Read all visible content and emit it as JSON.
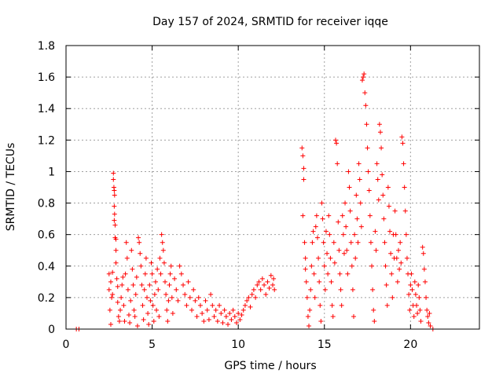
{
  "chart_data": {
    "type": "scatter",
    "title": "Day 157 of 2024, SRMTID for receiver iqqe",
    "xlabel": "GPS time / hours",
    "ylabel": "SRMTID / TECUs",
    "xlim": [
      0,
      24
    ],
    "ylim": [
      0,
      1.8
    ],
    "xticks": [
      0,
      5,
      10,
      15,
      20
    ],
    "yticks": [
      0,
      0.2,
      0.4,
      0.6,
      0.8,
      1,
      1.2,
      1.4,
      1.6,
      1.8
    ],
    "xtick_labels": [
      "0",
      "5",
      "10",
      "15",
      "20"
    ],
    "ytick_labels": [
      "0",
      "0.2",
      "0.4",
      "0.6",
      "0.8",
      "1",
      "1.2",
      "1.4",
      "1.6",
      "1.8"
    ],
    "grid": true,
    "marker": "+",
    "color": "#ff0000",
    "series": [
      {
        "name": "SRMTID",
        "points": [
          [
            0.6,
            0.0
          ],
          [
            0.75,
            0.0
          ],
          [
            2.5,
            0.35
          ],
          [
            2.5,
            0.25
          ],
          [
            2.55,
            0.12
          ],
          [
            2.6,
            0.03
          ],
          [
            2.6,
            0.3
          ],
          [
            2.65,
            0.2
          ],
          [
            2.7,
            0.22
          ],
          [
            2.7,
            0.36
          ],
          [
            2.75,
            0.99
          ],
          [
            2.75,
            0.95
          ],
          [
            2.78,
            0.9
          ],
          [
            2.8,
            0.88
          ],
          [
            2.82,
            0.85
          ],
          [
            2.8,
            0.78
          ],
          [
            2.82,
            0.73
          ],
          [
            2.8,
            0.69
          ],
          [
            2.85,
            0.66
          ],
          [
            2.85,
            0.58
          ],
          [
            2.9,
            0.57
          ],
          [
            2.9,
            0.5
          ],
          [
            2.9,
            0.42
          ],
          [
            2.95,
            0.32
          ],
          [
            3.0,
            0.27
          ],
          [
            3.0,
            0.17
          ],
          [
            3.05,
            0.08
          ],
          [
            3.1,
            0.05
          ],
          [
            3.15,
            0.12
          ],
          [
            3.2,
            0.2
          ],
          [
            3.25,
            0.28
          ],
          [
            3.3,
            0.33
          ],
          [
            3.35,
            0.15
          ],
          [
            3.4,
            0.05
          ],
          [
            3.45,
            0.35
          ],
          [
            3.5,
            0.55
          ],
          [
            3.55,
            0.45
          ],
          [
            3.6,
            0.25
          ],
          [
            3.65,
            0.09
          ],
          [
            3.7,
            0.04
          ],
          [
            3.75,
            0.18
          ],
          [
            3.8,
            0.5
          ],
          [
            3.85,
            0.38
          ],
          [
            3.9,
            0.28
          ],
          [
            3.95,
            0.12
          ],
          [
            4.0,
            0.08
          ],
          [
            4.05,
            0.22
          ],
          [
            4.1,
            0.33
          ],
          [
            4.15,
            0.02
          ],
          [
            4.2,
            0.58
          ],
          [
            4.25,
            0.55
          ],
          [
            4.3,
            0.48
          ],
          [
            4.35,
            0.4
          ],
          [
            4.4,
            0.28
          ],
          [
            4.45,
            0.15
          ],
          [
            4.5,
            0.06
          ],
          [
            4.55,
            0.25
          ],
          [
            4.6,
            0.35
          ],
          [
            4.65,
            0.45
          ],
          [
            4.7,
            0.2
          ],
          [
            4.75,
            0.1
          ],
          [
            4.8,
            0.03
          ],
          [
            4.85,
            0.28
          ],
          [
            4.9,
            0.18
          ],
          [
            4.95,
            0.42
          ],
          [
            5.0,
            0.35
          ],
          [
            5.05,
            0.15
          ],
          [
            5.1,
            0.05
          ],
          [
            5.15,
            0.22
          ],
          [
            5.2,
            0.3
          ],
          [
            5.25,
            0.12
          ],
          [
            5.3,
            0.38
          ],
          [
            5.35,
            0.25
          ],
          [
            5.4,
            0.08
          ],
          [
            5.45,
            0.45
          ],
          [
            5.5,
            0.35
          ],
          [
            5.55,
            0.6
          ],
          [
            5.6,
            0.55
          ],
          [
            5.65,
            0.5
          ],
          [
            5.7,
            0.42
          ],
          [
            5.75,
            0.3
          ],
          [
            5.8,
            0.22
          ],
          [
            5.85,
            0.12
          ],
          [
            5.9,
            0.05
          ],
          [
            5.95,
            0.18
          ],
          [
            6.0,
            0.28
          ],
          [
            6.05,
            0.35
          ],
          [
            6.1,
            0.4
          ],
          [
            6.15,
            0.2
          ],
          [
            6.2,
            0.1
          ],
          [
            6.3,
            0.32
          ],
          [
            6.4,
            0.25
          ],
          [
            6.5,
            0.18
          ],
          [
            6.6,
            0.4
          ],
          [
            6.7,
            0.35
          ],
          [
            6.8,
            0.28
          ],
          [
            6.9,
            0.22
          ],
          [
            7.0,
            0.15
          ],
          [
            7.1,
            0.3
          ],
          [
            7.2,
            0.2
          ],
          [
            7.3,
            0.12
          ],
          [
            7.4,
            0.25
          ],
          [
            7.5,
            0.18
          ],
          [
            7.6,
            0.08
          ],
          [
            7.7,
            0.2
          ],
          [
            7.8,
            0.15
          ],
          [
            7.9,
            0.1
          ],
          [
            8.0,
            0.05
          ],
          [
            8.1,
            0.18
          ],
          [
            8.2,
            0.12
          ],
          [
            8.3,
            0.06
          ],
          [
            8.4,
            0.22
          ],
          [
            8.5,
            0.15
          ],
          [
            8.6,
            0.08
          ],
          [
            8.7,
            0.12
          ],
          [
            8.8,
            0.05
          ],
          [
            8.9,
            0.15
          ],
          [
            9.0,
            0.1
          ],
          [
            9.1,
            0.04
          ],
          [
            9.2,
            0.12
          ],
          [
            9.3,
            0.08
          ],
          [
            9.4,
            0.03
          ],
          [
            9.5,
            0.1
          ],
          [
            9.6,
            0.06
          ],
          [
            9.7,
            0.12
          ],
          [
            9.8,
            0.08
          ],
          [
            9.9,
            0.04
          ],
          [
            10.0,
            0.1
          ],
          [
            10.1,
            0.06
          ],
          [
            10.2,
            0.09
          ],
          [
            10.3,
            0.12
          ],
          [
            10.4,
            0.15
          ],
          [
            10.5,
            0.18
          ],
          [
            10.6,
            0.2
          ],
          [
            10.7,
            0.14
          ],
          [
            10.8,
            0.22
          ],
          [
            10.9,
            0.25
          ],
          [
            11.0,
            0.2
          ],
          [
            11.1,
            0.28
          ],
          [
            11.2,
            0.3
          ],
          [
            11.3,
            0.25
          ],
          [
            11.4,
            0.32
          ],
          [
            11.5,
            0.28
          ],
          [
            11.6,
            0.22
          ],
          [
            11.7,
            0.3
          ],
          [
            11.8,
            0.26
          ],
          [
            11.9,
            0.34
          ],
          [
            12.0,
            0.28
          ],
          [
            12.05,
            0.32
          ],
          [
            12.1,
            0.25
          ],
          [
            13.7,
            1.15
          ],
          [
            13.75,
            1.1
          ],
          [
            13.8,
            1.02
          ],
          [
            13.8,
            0.95
          ],
          [
            13.75,
            0.72
          ],
          [
            13.85,
            0.55
          ],
          [
            13.9,
            0.45
          ],
          [
            13.9,
            0.38
          ],
          [
            13.95,
            0.3
          ],
          [
            14.0,
            0.2
          ],
          [
            14.05,
            0.08
          ],
          [
            14.1,
            0.02
          ],
          [
            14.15,
            0.12
          ],
          [
            14.2,
            0.25
          ],
          [
            14.25,
            0.4
          ],
          [
            14.3,
            0.55
          ],
          [
            14.35,
            0.62
          ],
          [
            14.4,
            0.35
          ],
          [
            14.45,
            0.2
          ],
          [
            14.5,
            0.65
          ],
          [
            14.55,
            0.72
          ],
          [
            14.6,
            0.58
          ],
          [
            14.65,
            0.45
          ],
          [
            14.7,
            0.3
          ],
          [
            14.75,
            0.15
          ],
          [
            14.8,
            0.05
          ],
          [
            14.85,
            0.8
          ],
          [
            14.9,
            0.7
          ],
          [
            14.95,
            0.55
          ],
          [
            15.0,
            0.4
          ],
          [
            15.05,
            0.25
          ],
          [
            15.1,
            0.62
          ],
          [
            15.15,
            0.48
          ],
          [
            15.2,
            0.35
          ],
          [
            15.25,
            0.72
          ],
          [
            15.3,
            0.6
          ],
          [
            15.35,
            0.45
          ],
          [
            15.4,
            0.3
          ],
          [
            15.45,
            0.15
          ],
          [
            15.5,
            0.08
          ],
          [
            15.55,
            0.55
          ],
          [
            15.6,
            0.42
          ],
          [
            15.65,
            1.2
          ],
          [
            15.7,
            1.18
          ],
          [
            15.75,
            1.05
          ],
          [
            15.8,
            0.68
          ],
          [
            15.85,
            0.5
          ],
          [
            15.9,
            0.35
          ],
          [
            15.95,
            0.25
          ],
          [
            16.0,
            0.15
          ],
          [
            16.05,
            0.72
          ],
          [
            16.1,
            0.6
          ],
          [
            16.15,
            0.48
          ],
          [
            16.2,
            0.8
          ],
          [
            16.25,
            0.65
          ],
          [
            16.3,
            0.5
          ],
          [
            16.35,
            0.35
          ],
          [
            16.4,
            1.0
          ],
          [
            16.45,
            0.9
          ],
          [
            16.5,
            0.75
          ],
          [
            16.55,
            0.55
          ],
          [
            16.6,
            0.4
          ],
          [
            16.65,
            0.25
          ],
          [
            16.7,
            0.08
          ],
          [
            16.75,
            0.6
          ],
          [
            16.8,
            0.45
          ],
          [
            16.85,
            0.85
          ],
          [
            16.9,
            0.7
          ],
          [
            16.95,
            0.55
          ],
          [
            17.0,
            1.05
          ],
          [
            17.05,
            0.95
          ],
          [
            17.1,
            0.8
          ],
          [
            17.15,
            0.65
          ],
          [
            17.2,
            1.58
          ],
          [
            17.25,
            1.6
          ],
          [
            17.3,
            1.62
          ],
          [
            17.35,
            1.5
          ],
          [
            17.4,
            1.42
          ],
          [
            17.45,
            1.3
          ],
          [
            17.5,
            1.15
          ],
          [
            17.55,
            1.0
          ],
          [
            17.6,
            0.88
          ],
          [
            17.65,
            0.72
          ],
          [
            17.7,
            0.55
          ],
          [
            17.75,
            0.4
          ],
          [
            17.8,
            0.25
          ],
          [
            17.85,
            0.12
          ],
          [
            17.9,
            0.05
          ],
          [
            17.95,
            0.62
          ],
          [
            18.0,
            0.5
          ],
          [
            18.05,
            1.05
          ],
          [
            18.1,
            0.95
          ],
          [
            18.15,
            0.82
          ],
          [
            18.2,
            1.3
          ],
          [
            18.25,
            1.25
          ],
          [
            18.3,
            1.15
          ],
          [
            18.35,
            0.98
          ],
          [
            18.4,
            0.85
          ],
          [
            18.45,
            0.7
          ],
          [
            18.5,
            0.55
          ],
          [
            18.55,
            0.4
          ],
          [
            18.6,
            0.28
          ],
          [
            18.65,
            0.15
          ],
          [
            18.7,
            0.9
          ],
          [
            18.75,
            0.78
          ],
          [
            18.8,
            0.62
          ],
          [
            18.85,
            0.48
          ],
          [
            18.9,
            0.35
          ],
          [
            18.95,
            0.2
          ],
          [
            19.0,
            0.6
          ],
          [
            19.05,
            0.45
          ],
          [
            19.1,
            0.75
          ],
          [
            19.15,
            0.6
          ],
          [
            19.2,
            0.45
          ],
          [
            19.25,
            0.3
          ],
          [
            19.3,
            0.5
          ],
          [
            19.35,
            0.38
          ],
          [
            19.4,
            0.55
          ],
          [
            19.45,
            0.42
          ],
          [
            19.5,
            1.22
          ],
          [
            19.55,
            1.18
          ],
          [
            19.6,
            1.05
          ],
          [
            19.65,
            0.9
          ],
          [
            19.7,
            0.75
          ],
          [
            19.75,
            0.6
          ],
          [
            19.8,
            0.45
          ],
          [
            19.85,
            0.35
          ],
          [
            19.9,
            0.22
          ],
          [
            19.95,
            0.12
          ],
          [
            20.0,
            0.28
          ],
          [
            20.05,
            0.35
          ],
          [
            20.1,
            0.25
          ],
          [
            20.15,
            0.15
          ],
          [
            20.2,
            0.08
          ],
          [
            20.25,
            0.3
          ],
          [
            20.3,
            0.22
          ],
          [
            20.35,
            0.15
          ],
          [
            20.4,
            0.1
          ],
          [
            20.45,
            0.28
          ],
          [
            20.5,
            0.2
          ],
          [
            20.55,
            0.12
          ],
          [
            20.6,
            0.05
          ],
          [
            20.7,
            0.52
          ],
          [
            20.75,
            0.48
          ],
          [
            20.8,
            0.38
          ],
          [
            20.85,
            0.3
          ],
          [
            20.9,
            0.2
          ],
          [
            20.95,
            0.12
          ],
          [
            21.0,
            0.08
          ],
          [
            21.05,
            0.04
          ],
          [
            21.1,
            0.1
          ],
          [
            21.15,
            0.02
          ],
          [
            21.3,
            0.0
          ]
        ]
      }
    ]
  }
}
